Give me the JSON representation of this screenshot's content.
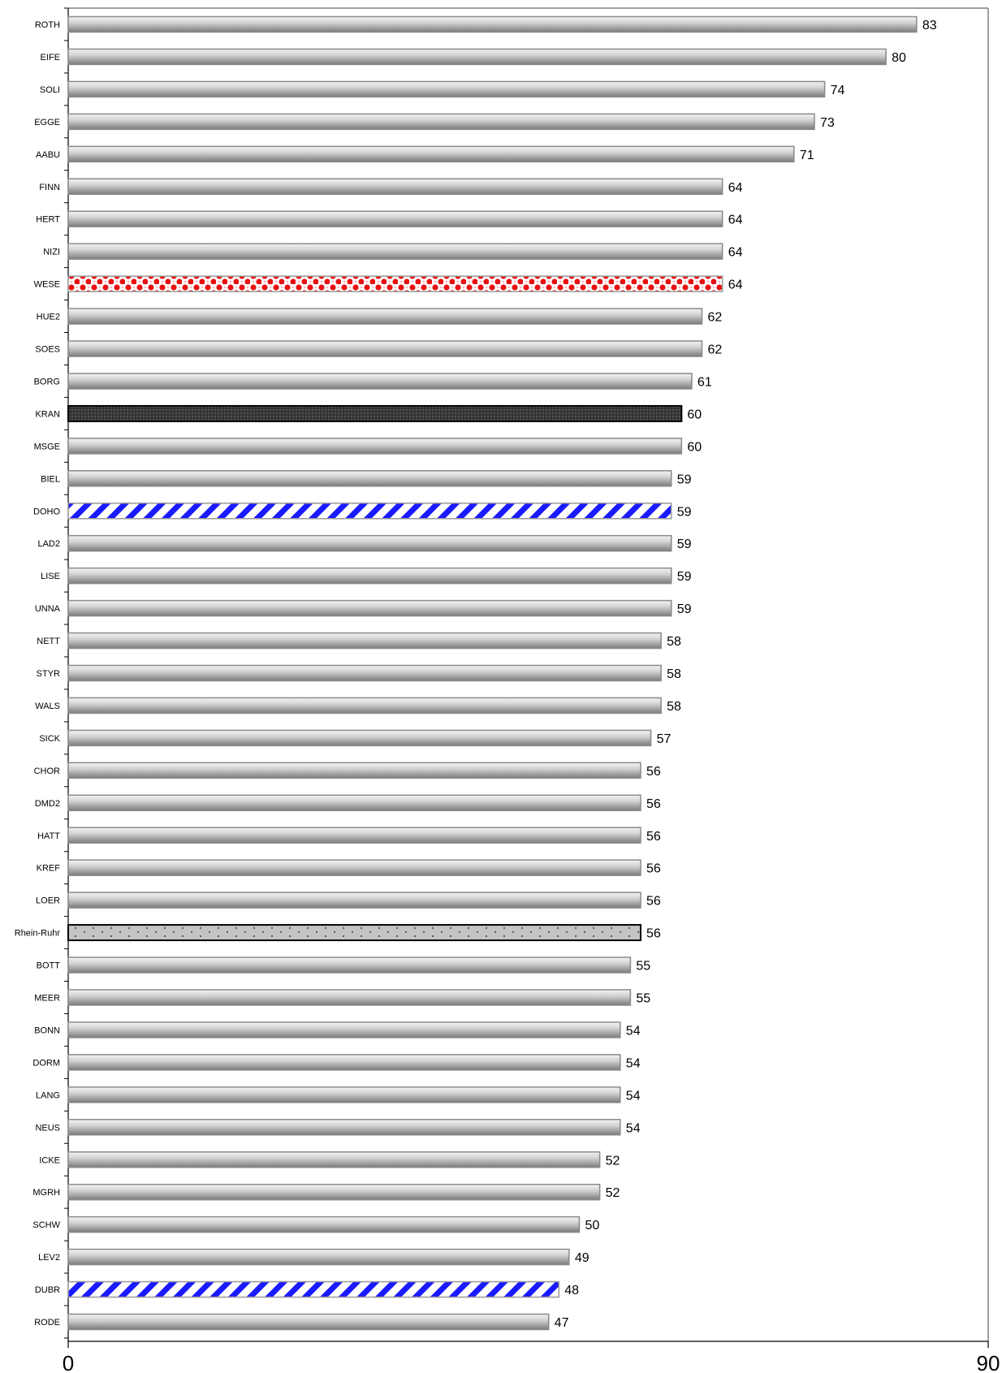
{
  "chart_data": {
    "type": "bar",
    "orientation": "horizontal",
    "categories": [
      "ROTH",
      "EIFE",
      "SOLI",
      "EGGE",
      "AABU",
      "FINN",
      "HERT",
      "NIZI",
      "WESE",
      "HUE2",
      "SOES",
      "BORG",
      "KRAN",
      "MSGE",
      "BIEL",
      "DOHO",
      "LAD2",
      "LISE",
      "UNNA",
      "NETT",
      "STYR",
      "WALS",
      "SICK",
      "CHOR",
      "DMD2",
      "HATT",
      "KREF",
      "LOER",
      "Rhein-Ruhr",
      "BOTT",
      "MEER",
      "BONN",
      "DORM",
      "LANG",
      "NEUS",
      "ICKE",
      "MGRH",
      "SCHW",
      "LEV2",
      "DUBR",
      "RODE"
    ],
    "values": [
      83,
      80,
      74,
      73,
      71,
      64,
      64,
      64,
      64,
      62,
      62,
      61,
      60,
      60,
      59,
      59,
      59,
      59,
      59,
      58,
      58,
      58,
      57,
      56,
      56,
      56,
      56,
      56,
      56,
      55,
      55,
      54,
      54,
      54,
      54,
      52,
      52,
      50,
      49,
      48,
      47
    ],
    "patterns": {
      "WESE": "red-polka",
      "KRAN": "dark-dotted",
      "DOHO": "blue-diagonal",
      "DUBR": "blue-diagonal",
      "Rhein-Ruhr": "grey-dotted"
    },
    "default_fill": "grey-gradient",
    "xlim": [
      0,
      90
    ],
    "x_tick_labels": [
      "0",
      "90"
    ],
    "title": "",
    "xlabel": "",
    "ylabel": "",
    "grid": false,
    "legend": "none"
  }
}
